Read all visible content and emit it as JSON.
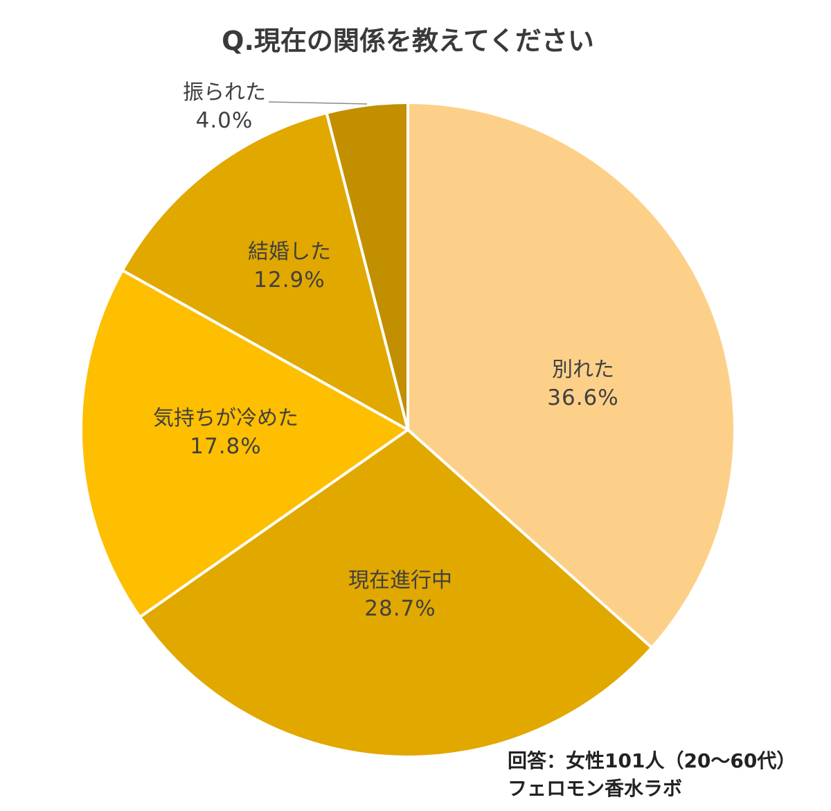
{
  "title": "Q.現在の関係を教えてください",
  "chart_data": {
    "type": "pie",
    "title": "Q.現在の関係を教えてください",
    "start_angle": "12 o'clock, clockwise",
    "categories": [
      "別れた",
      "現在進行中",
      "気持ちが冷めた",
      "結婚した",
      "振られた"
    ],
    "values": [
      36.6,
      28.7,
      17.8,
      12.9,
      4.0
    ],
    "unit": "%",
    "colors": [
      "#FDD089",
      "#E1A800",
      "#FDBF00",
      "#E1A800",
      "#C18F00"
    ],
    "labels": [
      {
        "name": "別れた",
        "pct": "36.6%"
      },
      {
        "name": "現在進行中",
        "pct": "28.7%"
      },
      {
        "name": "気持ちが冷めた",
        "pct": "17.8%"
      },
      {
        "name": "結婚した",
        "pct": "12.9%"
      },
      {
        "name": "振られた",
        "pct": "4.0%"
      }
    ],
    "legend": "none (data labels on slices)",
    "annotations": [
      "回答：女性101人（20～60代）",
      "フェロモン香水ラボ"
    ]
  },
  "note": {
    "line1": "回答：女性101人（20～60代）",
    "line2": "フェロモン香水ラボ"
  }
}
